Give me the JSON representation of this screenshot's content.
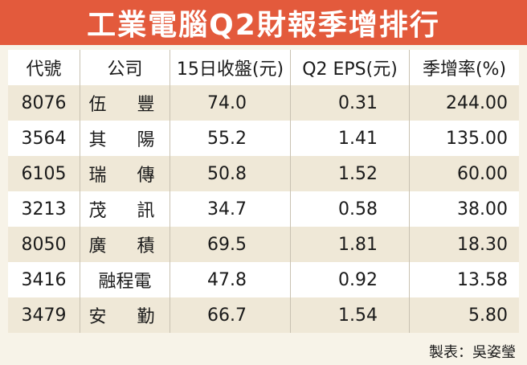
{
  "title": "工業電腦Q2財報季增排行",
  "chart_data": {
    "type": "table",
    "columns": [
      "代號",
      "公司",
      "15日收盤(元)",
      "Q2 EPS(元)",
      "季增率(%)"
    ],
    "rows": [
      {
        "code": "8076",
        "company": "伍　豐",
        "close": "74.0",
        "eps": "0.31",
        "qoq": "244.00"
      },
      {
        "code": "3564",
        "company": "其　陽",
        "close": "55.2",
        "eps": "1.41",
        "qoq": "135.00"
      },
      {
        "code": "6105",
        "company": "瑞　傳",
        "close": "50.8",
        "eps": "1.52",
        "qoq": "60.00"
      },
      {
        "code": "3213",
        "company": "茂　訊",
        "close": "34.7",
        "eps": "0.58",
        "qoq": "38.00"
      },
      {
        "code": "8050",
        "company": "廣　積",
        "close": "69.5",
        "eps": "1.81",
        "qoq": "18.30"
      },
      {
        "code": "3416",
        "company": "融程電",
        "close": "47.8",
        "eps": "0.92",
        "qoq": "13.58"
      },
      {
        "code": "3479",
        "company": "安　勤",
        "close": "66.7",
        "eps": "1.54",
        "qoq": "5.80"
      }
    ]
  },
  "credit": "製表：吳姿瑩",
  "colors": {
    "title_bg": "#e35a3c",
    "stripe": "#efe8d7",
    "background": "#f7f3e8"
  }
}
